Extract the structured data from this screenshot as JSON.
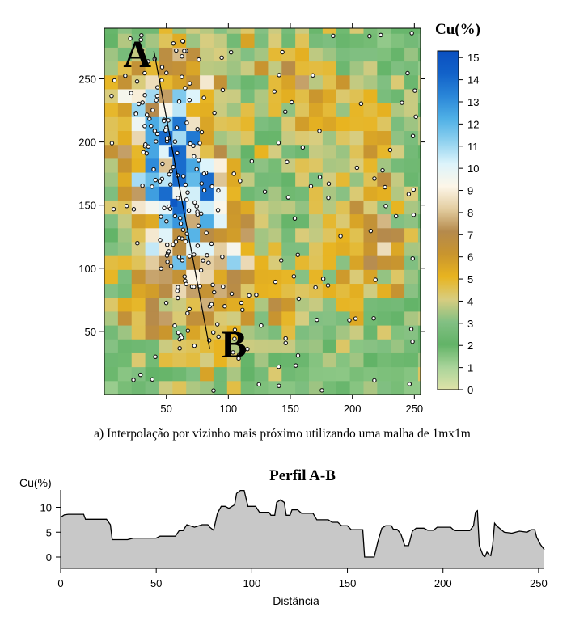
{
  "caption": "a) Interpolação por vizinho mais próximo utilizando uma malha de 1mx1m",
  "chart_data": [
    {
      "type": "heatmap",
      "method": "nearest-neighbour interpolation",
      "x_ticks": [
        50,
        100,
        150,
        200,
        250
      ],
      "y_ticks": [
        50,
        100,
        150,
        200,
        250
      ],
      "xlim": [
        0,
        255
      ],
      "ylim": [
        0,
        290
      ],
      "colorbar_title": "Cu(%)",
      "colorbar_ticks": [
        0,
        1,
        2,
        3,
        4,
        5,
        6,
        7,
        8,
        9,
        10,
        11,
        12,
        13,
        14,
        15
      ],
      "colorbar_range": [
        0,
        15.3
      ],
      "colorbar_colors": [
        "#dfe3a8",
        "#a9d49a",
        "#62b367",
        "#82c083",
        "#d8cd80",
        "#e8b420",
        "#c9952e",
        "#b58a4c",
        "#e3cda0",
        "#fdf6e8",
        "#ddf4fb",
        "#8fd1ef",
        "#4fb0e6",
        "#2a86d8",
        "#1262c9",
        "#0a4fc0"
      ],
      "section_label_start": "A",
      "section_label_end": "B",
      "section_line": [
        [
          40,
          272
        ],
        [
          85,
          36
        ]
      ]
    },
    {
      "type": "area",
      "title": "Perfil A-B",
      "ylabel": "Cu(%)",
      "xlabel": "Distância",
      "x_ticks": [
        0,
        50,
        100,
        150,
        200,
        250
      ],
      "y_ticks": [
        0,
        5,
        10
      ],
      "xlim": [
        0,
        253
      ],
      "ylim": [
        -1,
        15
      ],
      "fill_color": "#c8c8c8",
      "points": [
        [
          0,
          8.0
        ],
        [
          2,
          8.5
        ],
        [
          4,
          8.6
        ],
        [
          12,
          8.6
        ],
        [
          13,
          7.6
        ],
        [
          24,
          7.6
        ],
        [
          26,
          6.5
        ],
        [
          27,
          3.5
        ],
        [
          35,
          3.5
        ],
        [
          38,
          3.8
        ],
        [
          50,
          3.8
        ],
        [
          52,
          4.2
        ],
        [
          60,
          4.2
        ],
        [
          62,
          5.3
        ],
        [
          64,
          5.3
        ],
        [
          66,
          6.5
        ],
        [
          70,
          6.0
        ],
        [
          74,
          6.5
        ],
        [
          77,
          6.5
        ],
        [
          78,
          6.0
        ],
        [
          80,
          5.4
        ],
        [
          82,
          8.8
        ],
        [
          84,
          10.2
        ],
        [
          86,
          10.2
        ],
        [
          88,
          9.8
        ],
        [
          91,
          10.5
        ],
        [
          92,
          12.8
        ],
        [
          94,
          13.4
        ],
        [
          96,
          13.4
        ],
        [
          98,
          10.2
        ],
        [
          102,
          10.2
        ],
        [
          104,
          9.0
        ],
        [
          109,
          9.0
        ],
        [
          110,
          8.4
        ],
        [
          112,
          8.4
        ],
        [
          113,
          11.0
        ],
        [
          115,
          11.5
        ],
        [
          117,
          11.0
        ],
        [
          118,
          8.4
        ],
        [
          120,
          8.4
        ],
        [
          121,
          9.5
        ],
        [
          124,
          9.5
        ],
        [
          126,
          8.8
        ],
        [
          132,
          8.8
        ],
        [
          134,
          7.5
        ],
        [
          140,
          7.5
        ],
        [
          142,
          7.0
        ],
        [
          145,
          7.0
        ],
        [
          147,
          6.3
        ],
        [
          150,
          6.3
        ],
        [
          152,
          5.5
        ],
        [
          158,
          5.5
        ],
        [
          159,
          0.0
        ],
        [
          164,
          0.0
        ],
        [
          166,
          3.2
        ],
        [
          168,
          5.8
        ],
        [
          170,
          6.3
        ],
        [
          173,
          6.3
        ],
        [
          174,
          5.6
        ],
        [
          176,
          5.6
        ],
        [
          178,
          4.6
        ],
        [
          180,
          2.3
        ],
        [
          182,
          2.3
        ],
        [
          184,
          5.2
        ],
        [
          186,
          5.8
        ],
        [
          190,
          5.8
        ],
        [
          192,
          5.4
        ],
        [
          195,
          5.4
        ],
        [
          197,
          6.0
        ],
        [
          204,
          6.0
        ],
        [
          206,
          5.3
        ],
        [
          214,
          5.3
        ],
        [
          216,
          6.3
        ],
        [
          217,
          9.0
        ],
        [
          218,
          9.3
        ],
        [
          219,
          2.3
        ],
        [
          221,
          0.3
        ],
        [
          222,
          0.1
        ],
        [
          223,
          1.0
        ],
        [
          224,
          0.5
        ],
        [
          225,
          0.3
        ],
        [
          226,
          2.5
        ],
        [
          227,
          6.8
        ],
        [
          228,
          6.3
        ],
        [
          232,
          5.0
        ],
        [
          236,
          4.8
        ],
        [
          240,
          5.2
        ],
        [
          244,
          5.0
        ],
        [
          246,
          5.5
        ],
        [
          248,
          5.5
        ],
        [
          249,
          4.0
        ],
        [
          251,
          2.5
        ],
        [
          253,
          1.5
        ]
      ]
    }
  ]
}
